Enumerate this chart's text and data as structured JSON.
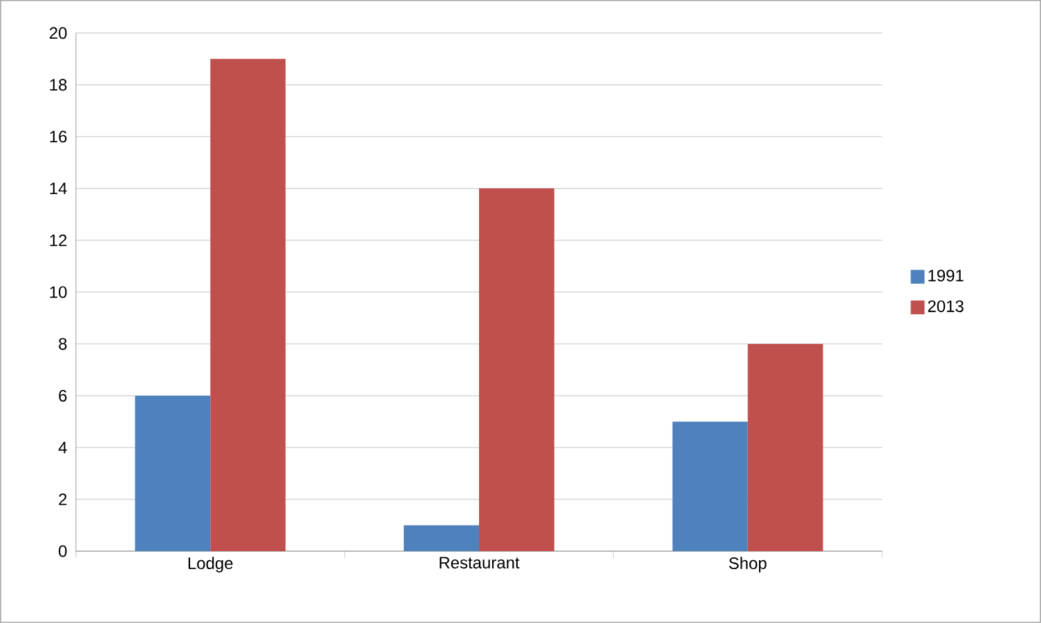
{
  "chart_data": {
    "type": "bar",
    "categories": [
      "Lodge",
      "Restaurant",
      "Shop"
    ],
    "series": [
      {
        "name": "1991",
        "color": "#4f81bd",
        "values": [
          6,
          1,
          5
        ]
      },
      {
        "name": "2013",
        "color": "#c0504d",
        "values": [
          19,
          14,
          8
        ]
      }
    ],
    "ylim": [
      0,
      20
    ],
    "yticks": [
      0,
      2,
      4,
      6,
      8,
      10,
      12,
      14,
      16,
      18,
      20
    ],
    "grid": "y",
    "legend": "right"
  }
}
